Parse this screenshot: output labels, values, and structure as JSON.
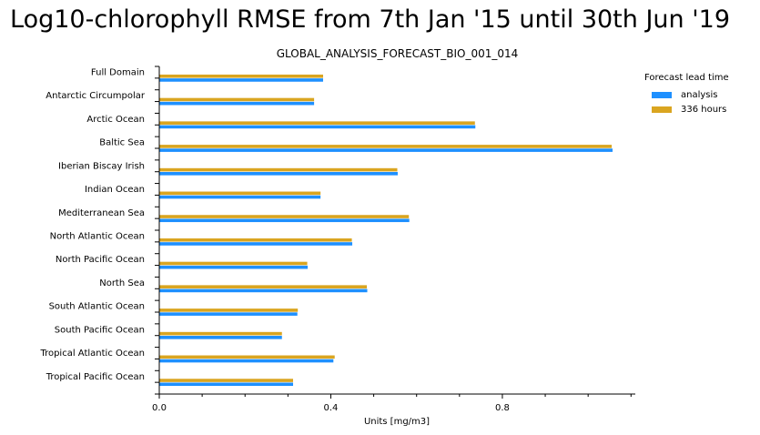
{
  "title": "Log10-chlorophyll RMSE from 7th Jan '15 until 30th Jun '19",
  "subtitle": "GLOBAL_ANALYSIS_FORECAST_BIO_001_014",
  "legend": {
    "title": "Forecast lead time",
    "items": [
      {
        "label": "analysis",
        "color": "#1e90ff"
      },
      {
        "label": "336 hours",
        "color": "#daa520"
      }
    ]
  },
  "chart_data": {
    "type": "bar",
    "orientation": "horizontal",
    "title": "Log10-chlorophyll RMSE from 7th Jan '15 until 30th Jun '19",
    "subtitle": "GLOBAL_ANALYSIS_FORECAST_BIO_001_014",
    "xlabel": "Units [mg/m3]",
    "ylabel": "",
    "xlim": [
      0,
      1.11
    ],
    "xticks": [
      0.0,
      0.4,
      0.8
    ],
    "xtick_labels": [
      "0.0",
      "0.4",
      "0.8"
    ],
    "legend_position": "top-right",
    "grid": false,
    "categories": [
      "Full Domain",
      "Antarctic Circumpolar",
      "Arctic Ocean",
      "Baltic Sea",
      "Iberian Biscay Irish",
      "Indian Ocean",
      "Mediterranean Sea",
      "North Atlantic Ocean",
      "North Pacific Ocean",
      "North Sea",
      "South Atlantic Ocean",
      "South Pacific Ocean",
      "Tropical Atlantic Ocean",
      "Tropical Pacific Ocean"
    ],
    "series": [
      {
        "name": "336 hours",
        "color": "#daa520",
        "values": [
          0.382,
          0.361,
          0.736,
          1.055,
          0.555,
          0.376,
          0.582,
          0.449,
          0.345,
          0.484,
          0.323,
          0.286,
          0.409,
          0.312
        ]
      },
      {
        "name": "analysis",
        "color": "#1e90ff",
        "values": [
          0.382,
          0.361,
          0.737,
          1.057,
          0.556,
          0.376,
          0.583,
          0.45,
          0.346,
          0.485,
          0.322,
          0.286,
          0.406,
          0.312
        ]
      }
    ]
  }
}
